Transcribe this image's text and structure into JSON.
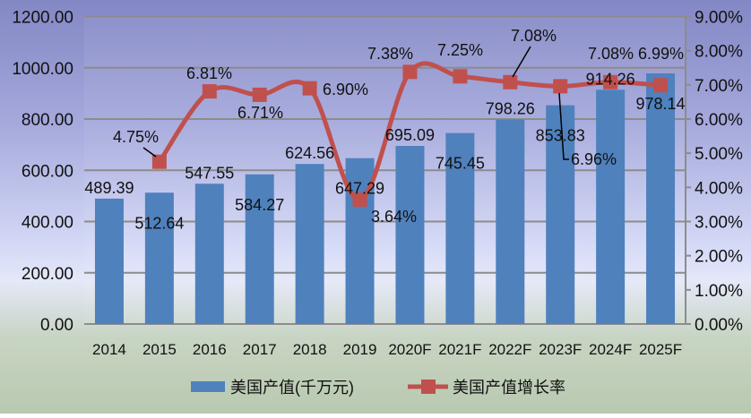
{
  "chart_data": {
    "type": "bar+line",
    "categories": [
      "2014",
      "2015",
      "2016",
      "2017",
      "2018",
      "2019",
      "2020F",
      "2021F",
      "2022F",
      "2023F",
      "2024F",
      "2025F"
    ],
    "series": [
      {
        "name": "美国产值(千万元)",
        "type": "bar",
        "axis": "left",
        "color": "#4f81bd",
        "values": [
          489.39,
          512.64,
          547.55,
          584.27,
          624.56,
          647.29,
          695.09,
          745.45,
          798.26,
          853.83,
          914.26,
          978.14
        ],
        "labels": [
          "489.39",
          "512.64",
          "547.55",
          "584.27",
          "624.56",
          "647.29",
          "695.09",
          "745.45",
          "798.26",
          "853.83",
          "914.26",
          "978.14"
        ]
      },
      {
        "name": "美国产值增长率",
        "type": "line",
        "axis": "right",
        "color": "#c0504d",
        "values": [
          null,
          4.75,
          6.81,
          6.71,
          6.9,
          3.64,
          7.38,
          7.25,
          7.08,
          6.96,
          7.08,
          6.99
        ],
        "labels": [
          "",
          "4.75%",
          "6.81%",
          "6.71%",
          "6.90%",
          "3.64%",
          "7.38%",
          "7.25%",
          "7.08%",
          "6.96%",
          "7.08%",
          "6.99%"
        ]
      }
    ],
    "y_left": {
      "range": [
        0,
        1200
      ],
      "ticks": [
        "0.00",
        "200.00",
        "400.00",
        "600.00",
        "800.00",
        "1000.00",
        "1200.00"
      ]
    },
    "y_right": {
      "range": [
        0,
        9
      ],
      "unit": "%",
      "ticks": [
        "0.00%",
        "1.00%",
        "2.00%",
        "3.00%",
        "4.00%",
        "5.00%",
        "6.00%",
        "7.00%",
        "8.00%",
        "9.00%"
      ]
    },
    "grid": "horizontal",
    "legend_placement": "bottom"
  }
}
